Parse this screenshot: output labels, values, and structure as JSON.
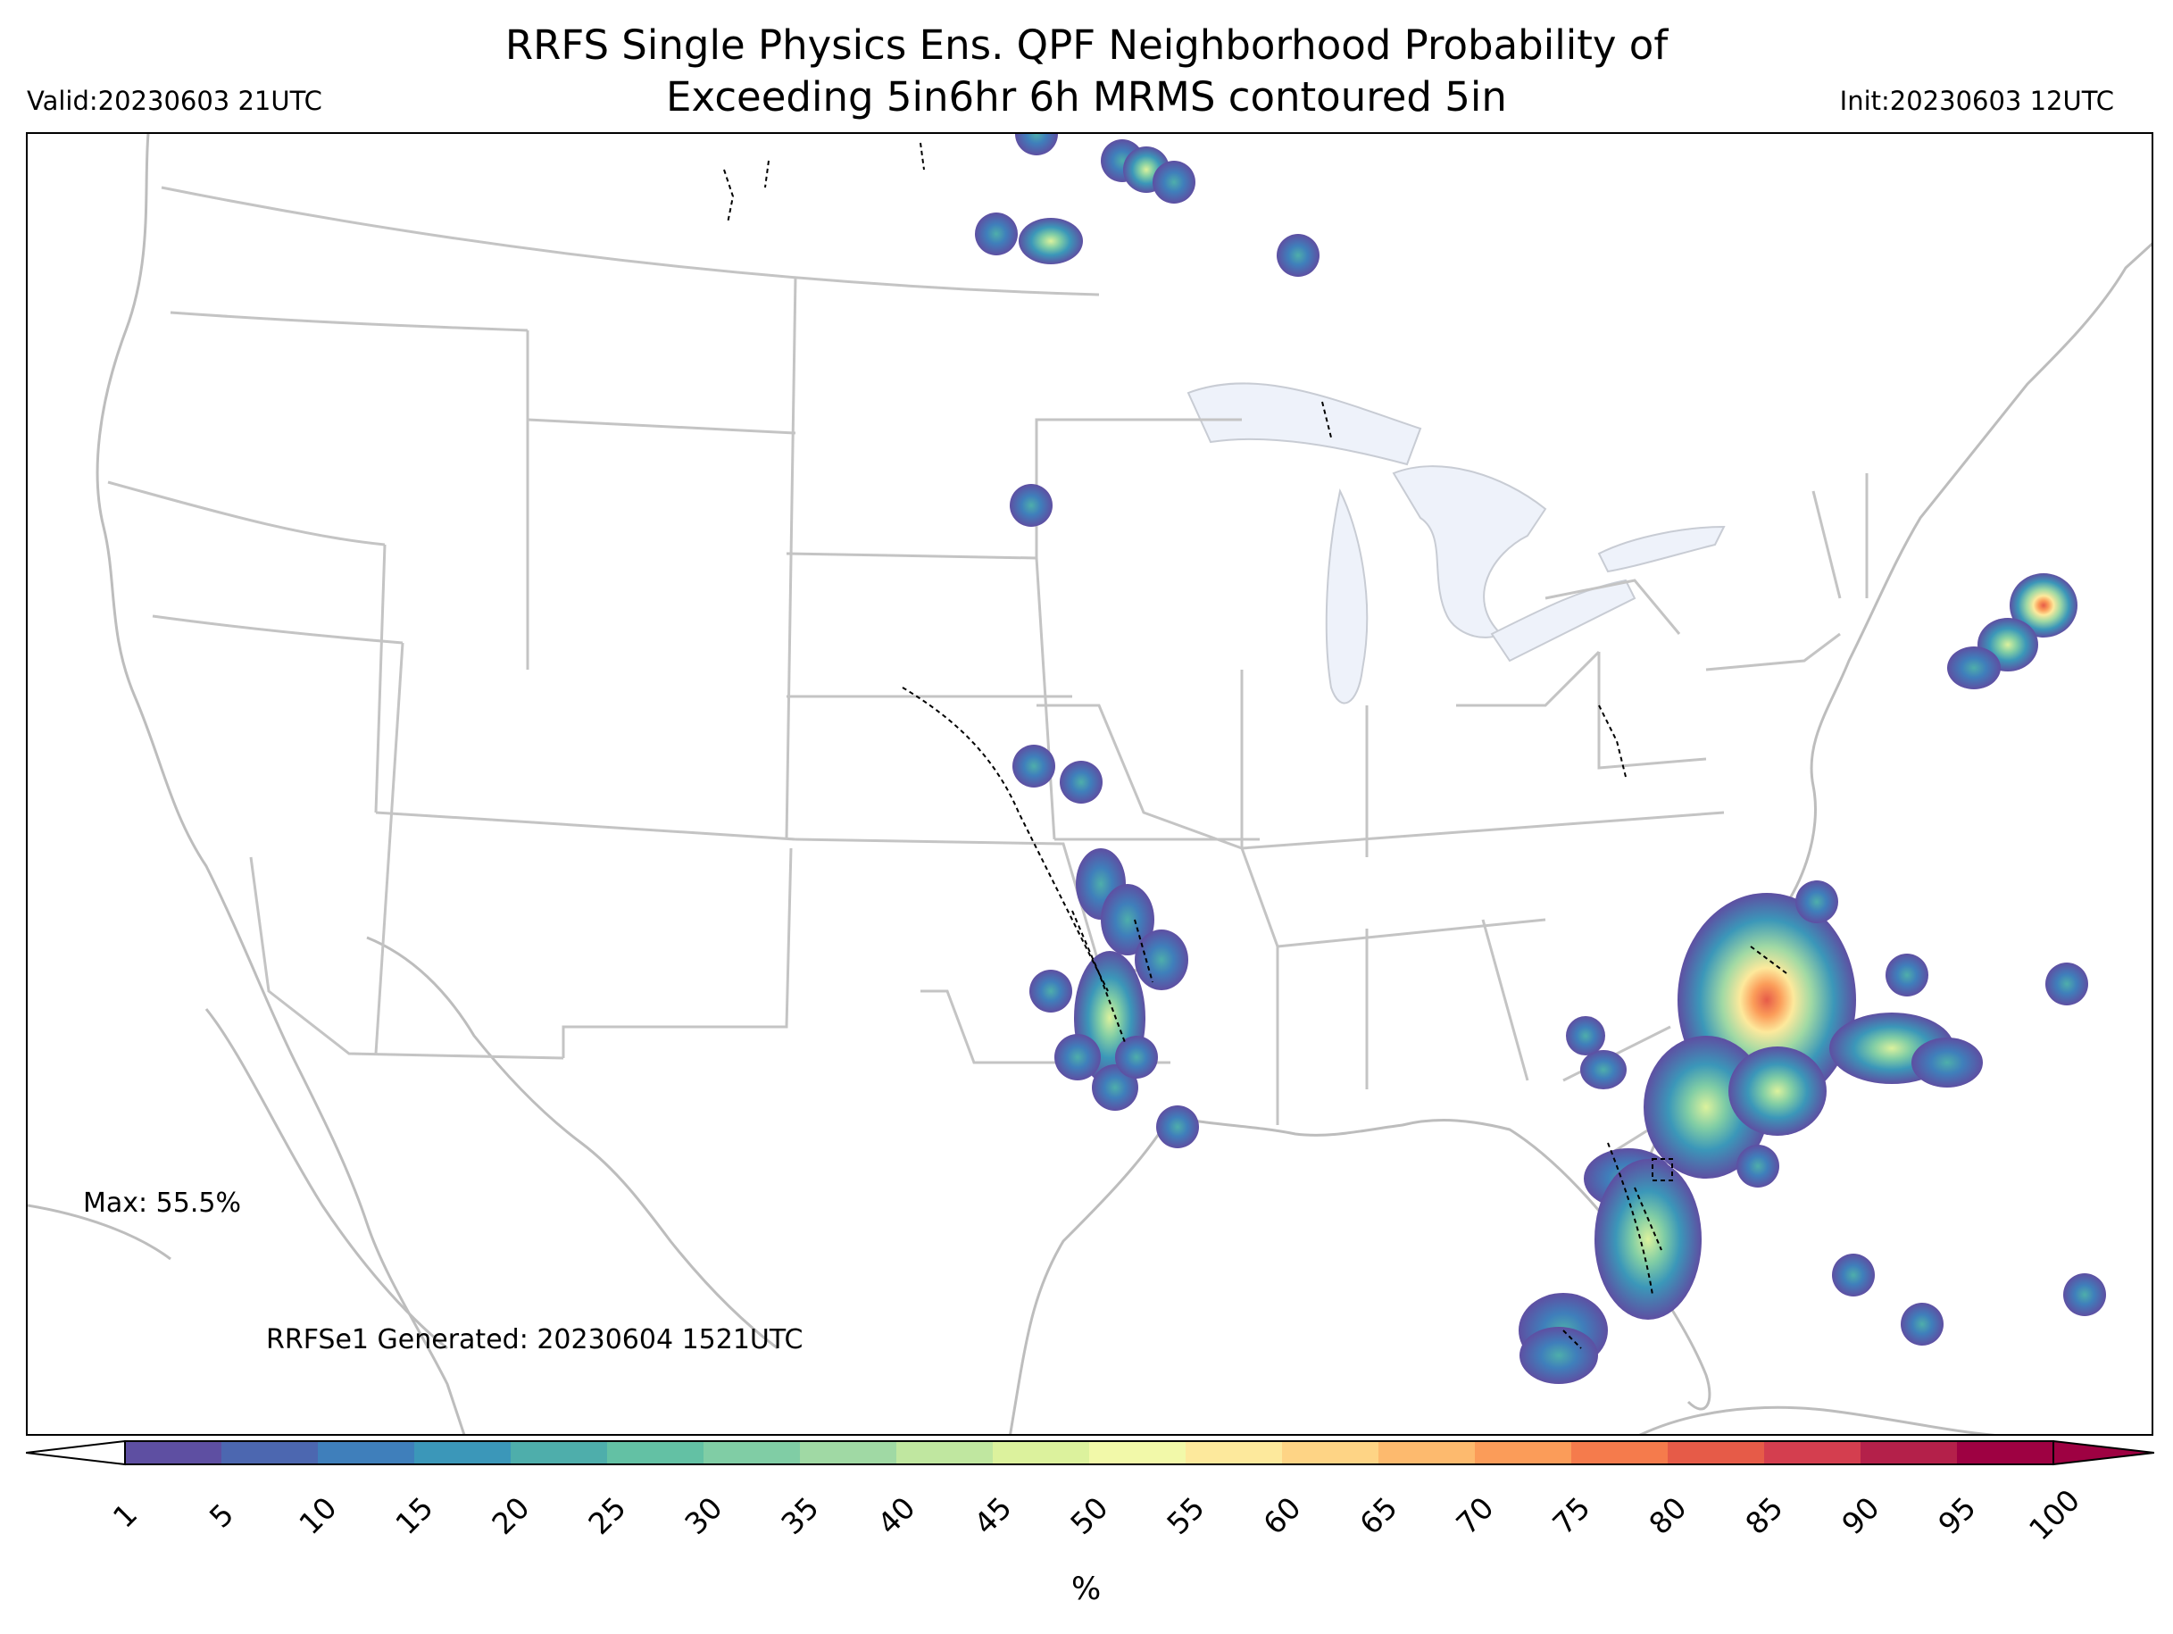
{
  "header": {
    "title_line1": "RRFS Single Physics Ens. QPF Neighborhood Probability of",
    "title_line2": "Exceeding 5in6hr 6h MRMS contoured 5in",
    "valid": "Valid:20230603 21UTC",
    "init": "Init:20230603 12UTC"
  },
  "map": {
    "max_label": "Max: 55.5%",
    "generated_label": "RRFSe1 Generated: 20230604 1521UTC"
  },
  "colorbar": {
    "ticks": [
      "1",
      "5",
      "10",
      "15",
      "20",
      "25",
      "30",
      "35",
      "40",
      "45",
      "50",
      "55",
      "60",
      "65",
      "70",
      "75",
      "80",
      "85",
      "90",
      "95",
      "100"
    ],
    "colors": [
      "#5e4fa2",
      "#4c67b0",
      "#3f7fbb",
      "#3b97b9",
      "#4eaeab",
      "#63c1a4",
      "#80cda5",
      "#a0d9a4",
      "#c0e7a0",
      "#dcf29d",
      "#f2f9a9",
      "#fde99c",
      "#fed485",
      "#fdba6e",
      "#fb9c59",
      "#f57b4c",
      "#e65b48",
      "#d43e4f",
      "#b4204a",
      "#9e0142"
    ],
    "unit": "%"
  }
}
